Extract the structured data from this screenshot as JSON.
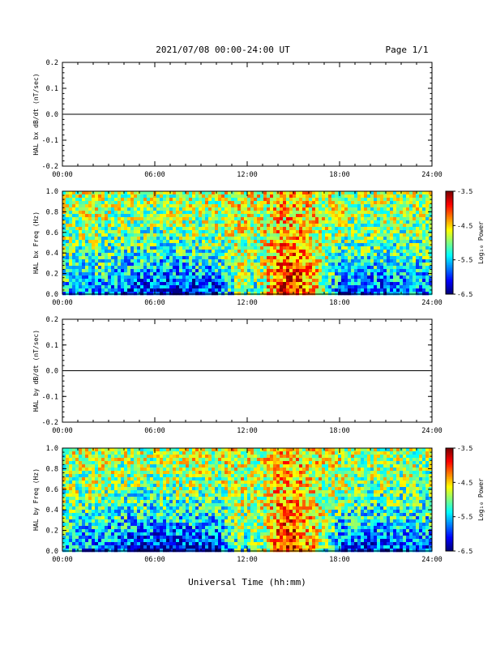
{
  "header": {
    "title": "2021/07/08  00:00-24:00 UT",
    "page": "Page 1/1"
  },
  "footer": {
    "xlabel": "Universal Time (hh:mm)"
  },
  "chart_data": [
    {
      "type": "line",
      "ylabel": "HAL bx dB/dt (nT/sec)",
      "x_ticks": [
        "00:00",
        "06:00",
        "12:00",
        "18:00",
        "24:00"
      ],
      "y_ticks": [
        "0.2",
        "0.1",
        "0.0",
        "-0.1",
        "-0.2"
      ],
      "xlim": [
        0,
        24
      ],
      "ylim": [
        -0.2,
        0.2
      ],
      "series": [
        {
          "x": [
            0,
            24
          ],
          "values": [
            0.0,
            0.0
          ]
        }
      ]
    },
    {
      "type": "heatmap",
      "ylabel": "HAL bx Freq (Hz)",
      "x_ticks": [
        "00:00",
        "06:00",
        "12:00",
        "18:00",
        "24:00"
      ],
      "y_ticks": [
        "1.0",
        "0.8",
        "0.6",
        "0.4",
        "0.2",
        "0.0"
      ],
      "xlim": [
        0,
        24
      ],
      "ylim": [
        0,
        1
      ],
      "colorbar": {
        "label": "Log₁₀ Power",
        "ticks": [
          "-3.5",
          "-4.5",
          "-5.5",
          "-6.5"
        ],
        "range": [
          -6.5,
          -3.5
        ]
      },
      "description_values": {
        "hours": [
          0,
          2,
          4,
          6,
          8,
          10,
          11.5,
          12.5,
          14,
          15,
          16.5,
          18,
          20,
          22,
          24
        ],
        "low_freq_power": [
          -5.6,
          -5.8,
          -6.0,
          -6.2,
          -6.3,
          -6.1,
          -5.0,
          -5.3,
          -4.0,
          -3.7,
          -4.5,
          -6.0,
          -6.0,
          -5.9,
          -5.8
        ],
        "high_freq_power": [
          -4.9,
          -4.8,
          -4.9,
          -4.9,
          -4.8,
          -4.8,
          -4.7,
          -4.8,
          -4.5,
          -4.5,
          -4.7,
          -4.8,
          -4.9,
          -4.9,
          -4.9
        ]
      }
    },
    {
      "type": "line",
      "ylabel": "HAL by dB/dt (nT/sec)",
      "x_ticks": [
        "00:00",
        "06:00",
        "12:00",
        "18:00",
        "24:00"
      ],
      "y_ticks": [
        "0.2",
        "0.1",
        "0.0",
        "-0.1",
        "-0.2"
      ],
      "xlim": [
        0,
        24
      ],
      "ylim": [
        -0.2,
        0.2
      ],
      "series": [
        {
          "x": [
            0,
            24
          ],
          "values": [
            0.0,
            0.0
          ]
        }
      ]
    },
    {
      "type": "heatmap",
      "ylabel": "HAL by Freq (Hz)",
      "x_ticks": [
        "00:00",
        "06:00",
        "12:00",
        "18:00",
        "24:00"
      ],
      "y_ticks": [
        "1.0",
        "0.8",
        "0.6",
        "0.4",
        "0.2",
        "0.0"
      ],
      "xlim": [
        0,
        24
      ],
      "ylim": [
        0,
        1
      ],
      "colorbar": {
        "label": "Log₁₀ Power",
        "ticks": [
          "-3.5",
          "-4.5",
          "-5.5",
          "-6.5"
        ],
        "range": [
          -6.5,
          -3.5
        ]
      },
      "description_values": {
        "hours": [
          0,
          2,
          4,
          6,
          8,
          10,
          11.5,
          12.5,
          14,
          15,
          16.5,
          18,
          20,
          22,
          24
        ],
        "low_freq_power": [
          -5.6,
          -5.9,
          -6.1,
          -6.3,
          -6.3,
          -6.2,
          -5.2,
          -5.4,
          -4.1,
          -3.8,
          -4.6,
          -6.0,
          -6.1,
          -6.0,
          -5.9
        ],
        "high_freq_power": [
          -4.9,
          -4.8,
          -4.9,
          -4.9,
          -4.8,
          -4.8,
          -4.7,
          -4.8,
          -4.5,
          -4.5,
          -4.7,
          -4.8,
          -4.9,
          -4.9,
          -4.9
        ]
      }
    }
  ]
}
